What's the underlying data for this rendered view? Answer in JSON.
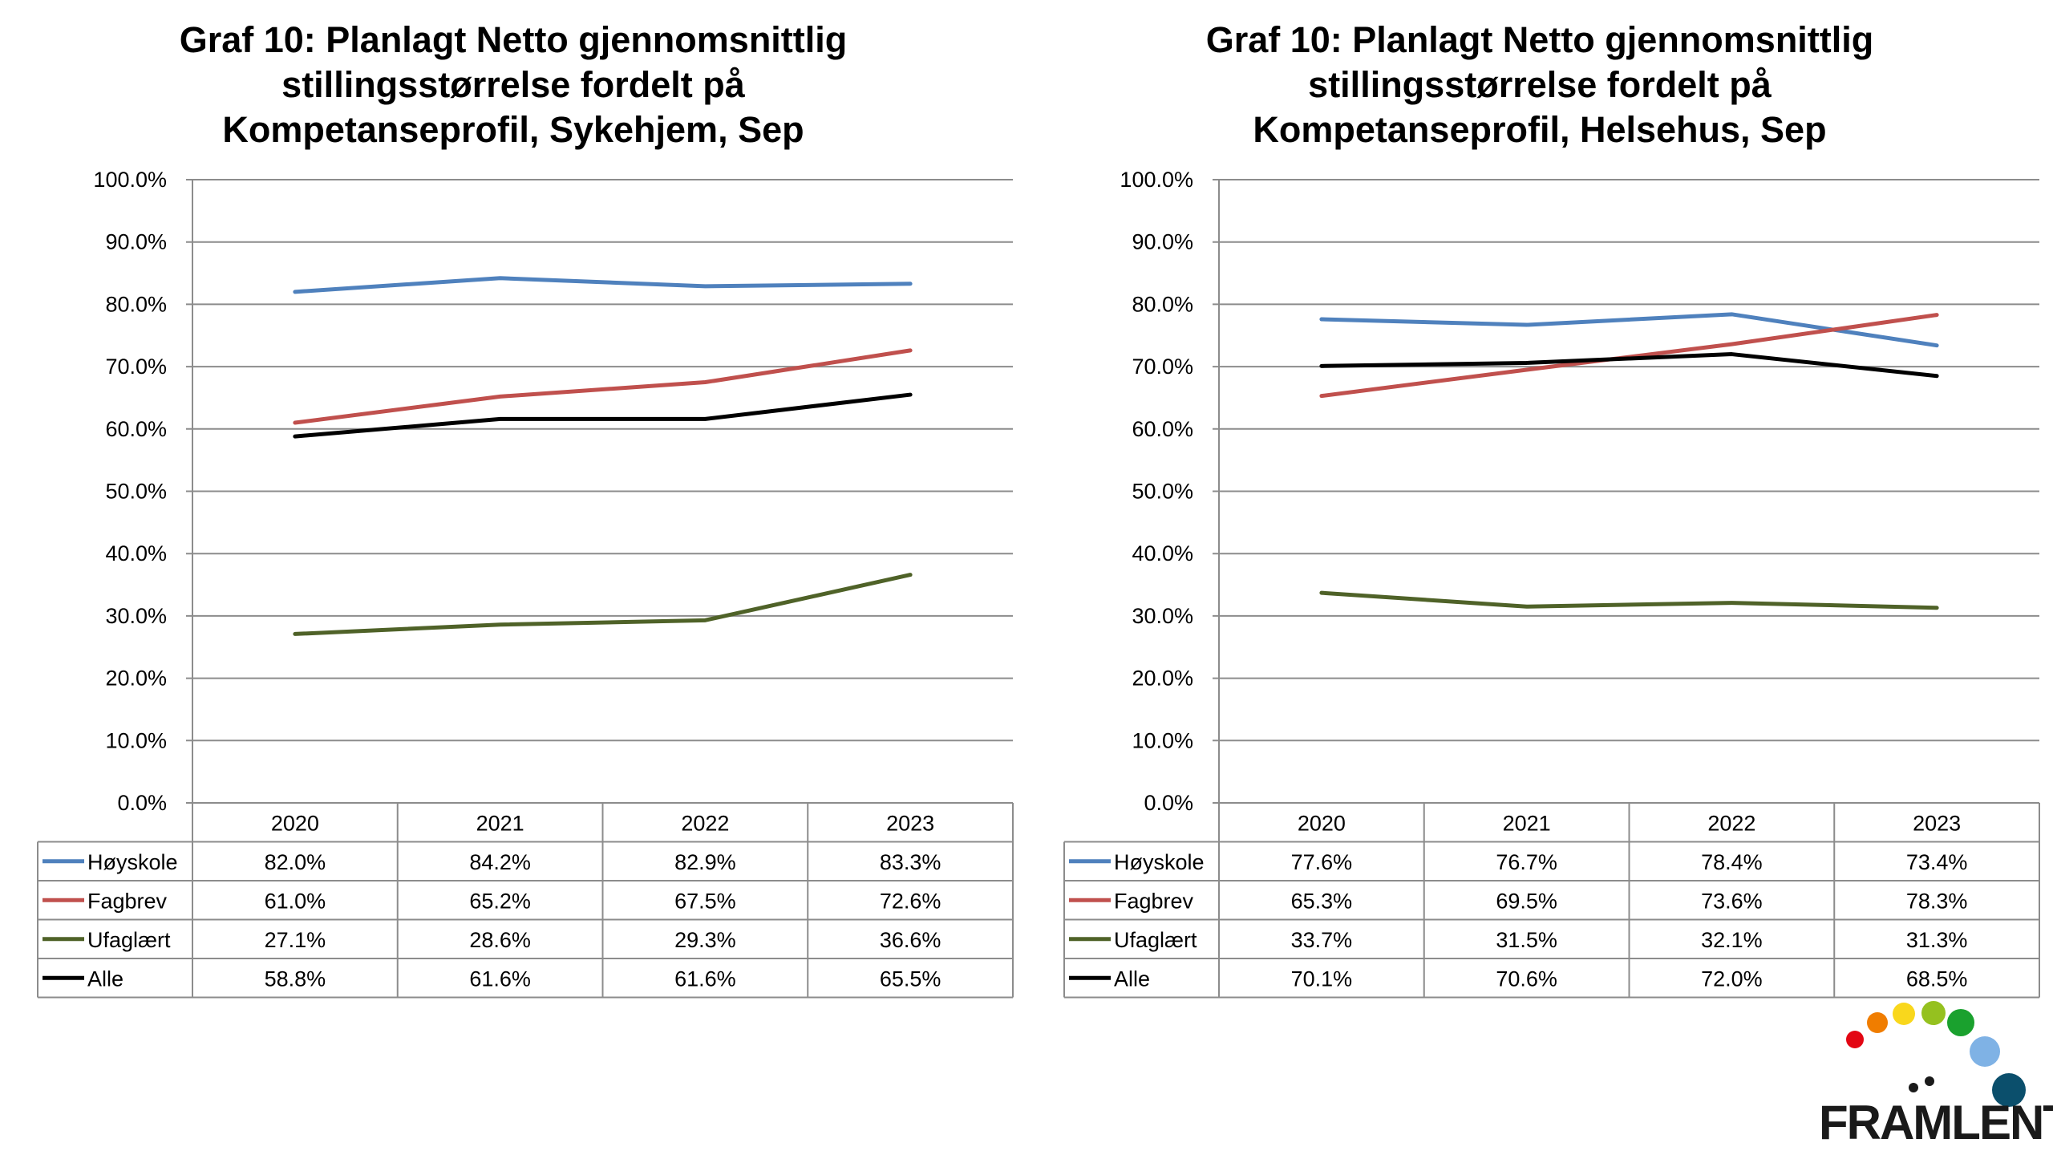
{
  "chart_data": [
    {
      "type": "line",
      "title": [
        "Graf 10: Planlagt Netto gjennomsnittlig",
        "stillingsstørrelse fordelt på",
        "Kompetanseprofil, Sykehjem, Sep"
      ],
      "categories": [
        "2020",
        "2021",
        "2022",
        "2023"
      ],
      "ylim": [
        0,
        100
      ],
      "y_ticks": [
        "0.0%",
        "10.0%",
        "20.0%",
        "30.0%",
        "40.0%",
        "50.0%",
        "60.0%",
        "70.0%",
        "80.0%",
        "90.0%",
        "100.0%"
      ],
      "grid": true,
      "legend_placement": "data-table",
      "series": [
        {
          "name": "Høyskole",
          "color": "#4f81bd",
          "values": [
            82.0,
            84.2,
            82.9,
            83.3
          ],
          "labels": [
            "82.0%",
            "84.2%",
            "82.9%",
            "83.3%"
          ]
        },
        {
          "name": "Fagbrev",
          "color": "#c0504d",
          "values": [
            61.0,
            65.2,
            67.5,
            72.6
          ],
          "labels": [
            "61.0%",
            "65.2%",
            "67.5%",
            "72.6%"
          ]
        },
        {
          "name": "Ufaglært",
          "color": "#4f6228",
          "values": [
            27.1,
            28.6,
            29.3,
            36.6
          ],
          "labels": [
            "27.1%",
            "28.6%",
            "29.3%",
            "36.6%"
          ]
        },
        {
          "name": "Alle",
          "color": "#000000",
          "values": [
            58.8,
            61.6,
            61.6,
            65.5
          ],
          "labels": [
            "58.8%",
            "61.6%",
            "61.6%",
            "65.5%"
          ]
        }
      ]
    },
    {
      "type": "line",
      "title": [
        "Graf 10: Planlagt Netto gjennomsnittlig",
        "stillingsstørrelse fordelt på",
        "Kompetanseprofil, Helsehus, Sep"
      ],
      "categories": [
        "2020",
        "2021",
        "2022",
        "2023"
      ],
      "ylim": [
        0,
        100
      ],
      "y_ticks": [
        "0.0%",
        "10.0%",
        "20.0%",
        "30.0%",
        "40.0%",
        "50.0%",
        "60.0%",
        "70.0%",
        "80.0%",
        "90.0%",
        "100.0%"
      ],
      "grid": true,
      "legend_placement": "data-table",
      "series": [
        {
          "name": "Høyskole",
          "color": "#4f81bd",
          "values": [
            77.6,
            76.7,
            78.4,
            73.4
          ],
          "labels": [
            "77.6%",
            "76.7%",
            "78.4%",
            "73.4%"
          ]
        },
        {
          "name": "Fagbrev",
          "color": "#c0504d",
          "values": [
            65.3,
            69.5,
            73.6,
            78.3
          ],
          "labels": [
            "65.3%",
            "69.5%",
            "73.6%",
            "78.3%"
          ]
        },
        {
          "name": "Ufaglært",
          "color": "#4f6228",
          "values": [
            33.7,
            31.5,
            32.1,
            31.3
          ],
          "labels": [
            "33.7%",
            "31.5%",
            "32.1%",
            "31.3%"
          ]
        },
        {
          "name": "Alle",
          "color": "#000000",
          "values": [
            70.1,
            70.6,
            72.0,
            68.5
          ],
          "labels": [
            "70.1%",
            "70.6%",
            "72.0%",
            "68.5%"
          ]
        }
      ]
    }
  ],
  "logo": {
    "text": "FRAMLENT",
    "dot_colors": [
      "#e30613",
      "#f07d00",
      "#f9d71c",
      "#95c11f",
      "#1aa12e",
      "#7fb2e5",
      "#0b4f6c"
    ]
  }
}
